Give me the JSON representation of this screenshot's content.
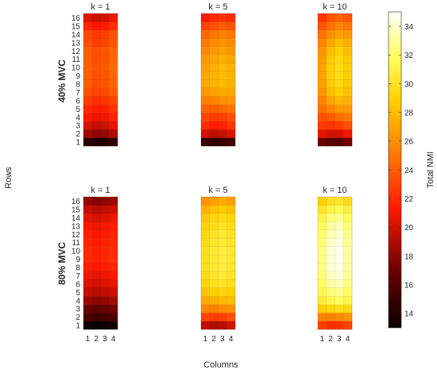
{
  "chart_data": {
    "type": "heatmap",
    "row_labels": [
      "1",
      "2",
      "3",
      "4",
      "5",
      "6",
      "7",
      "8",
      "9",
      "10",
      "11",
      "12",
      "13",
      "14",
      "15",
      "16"
    ],
    "column_labels": [
      "1",
      "2",
      "3",
      "4"
    ],
    "xlabel": "Columns",
    "ylabel": "Rows",
    "colorbar": {
      "label": "Total NMI",
      "range": [
        13,
        35
      ],
      "ticks": [
        "14",
        "16",
        "18",
        "20",
        "22",
        "24",
        "26",
        "28",
        "30",
        "32",
        "34"
      ],
      "colormap": "hot"
    },
    "row_group_labels": [
      "40% MVC",
      "80% MVC"
    ],
    "panels": [
      {
        "condition": "40% MVC",
        "title": "k = 1",
        "values_by_row": [
          [
            14.2,
            13.8,
            14.0,
            14.6
          ],
          [
            18.6,
            18.0,
            18.2,
            19.0
          ],
          [
            20.2,
            19.6,
            19.8,
            20.6
          ],
          [
            21.4,
            20.8,
            21.0,
            21.8
          ],
          [
            22.0,
            21.4,
            21.6,
            22.4
          ],
          [
            22.8,
            22.2,
            22.4,
            23.2
          ],
          [
            23.6,
            23.0,
            23.2,
            24.0
          ],
          [
            24.0,
            23.4,
            23.6,
            24.4
          ],
          [
            24.0,
            23.4,
            23.6,
            24.4
          ],
          [
            24.2,
            23.6,
            23.8,
            24.6
          ],
          [
            24.0,
            23.4,
            23.6,
            24.4
          ],
          [
            24.0,
            23.4,
            23.6,
            24.4
          ],
          [
            23.4,
            22.8,
            23.0,
            23.8
          ],
          [
            23.2,
            22.6,
            22.8,
            23.6
          ],
          [
            21.8,
            21.2,
            21.4,
            22.2
          ],
          [
            20.4,
            19.8,
            20.0,
            20.8
          ]
        ]
      },
      {
        "condition": "40% MVC",
        "title": "k = 5",
        "values_by_row": [
          [
            15.0,
            14.6,
            14.8,
            15.4
          ],
          [
            20.0,
            19.4,
            19.6,
            20.4
          ],
          [
            22.0,
            21.4,
            21.6,
            22.4
          ],
          [
            23.0,
            22.6,
            22.8,
            23.4
          ],
          [
            24.2,
            24.0,
            24.4,
            24.8
          ],
          [
            25.4,
            25.6,
            26.0,
            26.2
          ],
          [
            26.4,
            26.8,
            27.2,
            27.0
          ],
          [
            27.0,
            27.6,
            28.0,
            27.6
          ],
          [
            27.0,
            27.6,
            28.0,
            27.6
          ],
          [
            26.8,
            27.4,
            27.8,
            27.4
          ],
          [
            26.4,
            27.0,
            27.4,
            27.0
          ],
          [
            25.8,
            26.4,
            26.8,
            26.4
          ],
          [
            25.2,
            25.8,
            26.2,
            25.8
          ],
          [
            24.4,
            25.0,
            25.4,
            25.0
          ],
          [
            23.0,
            23.6,
            24.0,
            23.6
          ],
          [
            21.4,
            22.0,
            22.4,
            22.0
          ]
        ]
      },
      {
        "condition": "40% MVC",
        "title": "k = 10",
        "values_by_row": [
          [
            17.0,
            16.2,
            16.0,
            17.2
          ],
          [
            20.6,
            20.0,
            20.2,
            21.0
          ],
          [
            22.6,
            22.4,
            22.8,
            23.4
          ],
          [
            23.6,
            23.8,
            24.6,
            25.0
          ],
          [
            24.8,
            25.6,
            26.4,
            26.4
          ],
          [
            25.6,
            27.0,
            27.8,
            27.4
          ],
          [
            26.2,
            28.0,
            28.8,
            28.2
          ],
          [
            26.8,
            28.6,
            29.4,
            28.6
          ],
          [
            26.8,
            28.8,
            29.6,
            28.8
          ],
          [
            26.8,
            28.8,
            29.6,
            28.8
          ],
          [
            26.6,
            28.6,
            29.4,
            28.6
          ],
          [
            26.2,
            28.0,
            28.8,
            28.0
          ],
          [
            25.6,
            27.2,
            28.0,
            27.4
          ],
          [
            24.8,
            26.0,
            26.8,
            26.4
          ],
          [
            23.6,
            24.8,
            25.6,
            25.0
          ],
          [
            22.4,
            23.6,
            24.2,
            23.6
          ]
        ]
      },
      {
        "condition": "80% MVC",
        "title": "k = 1",
        "values_by_row": [
          [
            13.2,
            13.0,
            13.1,
            13.4
          ],
          [
            15.6,
            15.2,
            15.4,
            15.8
          ],
          [
            17.0,
            16.6,
            16.8,
            17.2
          ],
          [
            18.4,
            18.0,
            18.2,
            18.6
          ],
          [
            19.6,
            19.2,
            19.4,
            19.8
          ],
          [
            20.4,
            20.0,
            20.2,
            20.6
          ],
          [
            21.0,
            20.6,
            20.8,
            21.2
          ],
          [
            21.6,
            21.2,
            21.4,
            21.8
          ],
          [
            22.0,
            21.6,
            21.8,
            22.2
          ],
          [
            22.0,
            21.6,
            21.8,
            22.2
          ],
          [
            21.8,
            21.4,
            21.6,
            22.0
          ],
          [
            21.6,
            21.2,
            21.4,
            21.8
          ],
          [
            21.2,
            20.8,
            21.0,
            21.4
          ],
          [
            20.6,
            20.2,
            20.4,
            20.8
          ],
          [
            19.6,
            19.2,
            19.4,
            19.8
          ],
          [
            18.2,
            17.8,
            18.0,
            18.4
          ]
        ]
      },
      {
        "condition": "80% MVC",
        "title": "k = 5",
        "values_by_row": [
          [
            19.6,
            19.0,
            19.2,
            20.0
          ],
          [
            23.0,
            22.6,
            22.8,
            23.4
          ],
          [
            25.6,
            25.4,
            25.8,
            26.2
          ],
          [
            27.2,
            27.4,
            27.8,
            28.0
          ],
          [
            28.4,
            28.8,
            29.2,
            29.0
          ],
          [
            29.2,
            29.8,
            30.2,
            29.8
          ],
          [
            29.6,
            30.2,
            30.6,
            30.2
          ],
          [
            29.8,
            30.4,
            30.8,
            30.4
          ],
          [
            29.8,
            30.4,
            30.8,
            30.4
          ],
          [
            29.8,
            30.4,
            30.8,
            30.4
          ],
          [
            29.6,
            30.2,
            30.6,
            30.2
          ],
          [
            29.4,
            30.0,
            30.4,
            30.0
          ],
          [
            29.0,
            29.6,
            30.0,
            29.6
          ],
          [
            28.6,
            29.2,
            29.6,
            29.2
          ],
          [
            27.6,
            28.2,
            28.6,
            28.2
          ],
          [
            26.2,
            26.8,
            27.2,
            26.8
          ]
        ]
      },
      {
        "condition": "80% MVC",
        "title": "k = 10",
        "values_by_row": [
          [
            22.8,
            22.2,
            22.4,
            23.0
          ],
          [
            25.6,
            25.4,
            25.8,
            26.2
          ],
          [
            28.8,
            29.2,
            29.6,
            29.4
          ],
          [
            30.6,
            31.4,
            31.8,
            31.2
          ],
          [
            31.4,
            32.4,
            32.8,
            32.0
          ],
          [
            32.0,
            33.2,
            33.6,
            32.6
          ],
          [
            32.4,
            33.8,
            34.2,
            33.0
          ],
          [
            32.6,
            34.2,
            34.6,
            33.2
          ],
          [
            32.6,
            34.2,
            34.6,
            33.2
          ],
          [
            32.6,
            34.2,
            34.6,
            33.2
          ],
          [
            32.4,
            34.0,
            34.4,
            33.0
          ],
          [
            32.2,
            33.6,
            34.0,
            32.8
          ],
          [
            31.8,
            33.2,
            33.6,
            32.4
          ],
          [
            31.2,
            32.4,
            32.8,
            31.8
          ],
          [
            30.2,
            31.2,
            31.6,
            30.8
          ],
          [
            29.0,
            29.8,
            30.2,
            29.6
          ]
        ]
      }
    ]
  }
}
